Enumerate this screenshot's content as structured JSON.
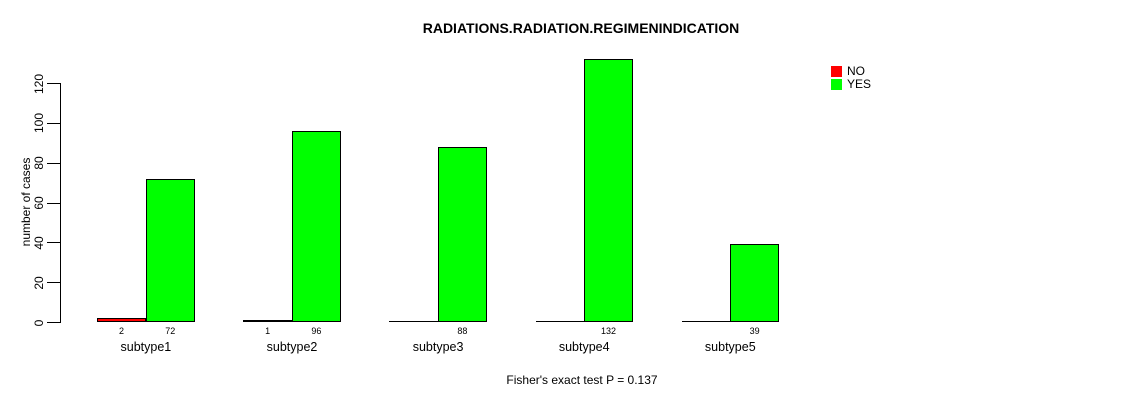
{
  "chart_data": {
    "type": "bar",
    "bar_style": "grouped",
    "title": "RADIATIONS.RADIATION.REGIMENINDICATION",
    "ylabel": "number of cases",
    "xlabel": "",
    "caption": "Fisher's exact test P = 0.137",
    "categories": [
      "subtype1",
      "subtype2",
      "subtype3",
      "subtype4",
      "subtype5"
    ],
    "series": [
      {
        "name": "NO",
        "color": "#FF0000",
        "values": [
          2,
          1,
          0,
          0,
          0
        ]
      },
      {
        "name": "YES",
        "color": "#00FF00",
        "values": [
          72,
          96,
          88,
          132,
          39
        ]
      }
    ],
    "yticks": [
      0,
      20,
      40,
      60,
      80,
      100,
      120
    ],
    "ylim": [
      0,
      132
    ],
    "grid": false,
    "legend": {
      "position": "top-right",
      "entries": [
        "NO",
        "YES"
      ]
    },
    "value_labels": "numeric value shown under each bar when value > 0",
    "colors": {
      "bar_outline": "#000000",
      "text": "#000000",
      "background": "#FFFFFF"
    }
  }
}
